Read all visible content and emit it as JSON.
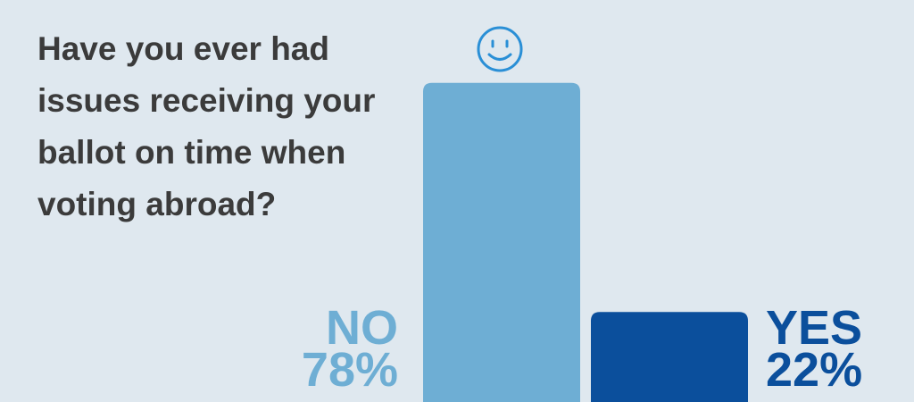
{
  "chart_data": {
    "type": "bar",
    "title": "Have you ever had issues receiving your ballot on time when voting abroad?",
    "categories": [
      "NO",
      "YES"
    ],
    "values": [
      78,
      22
    ],
    "value_labels": [
      "78%",
      "22%"
    ],
    "colors": [
      "#6eaed4",
      "#0b4f9c"
    ]
  }
}
